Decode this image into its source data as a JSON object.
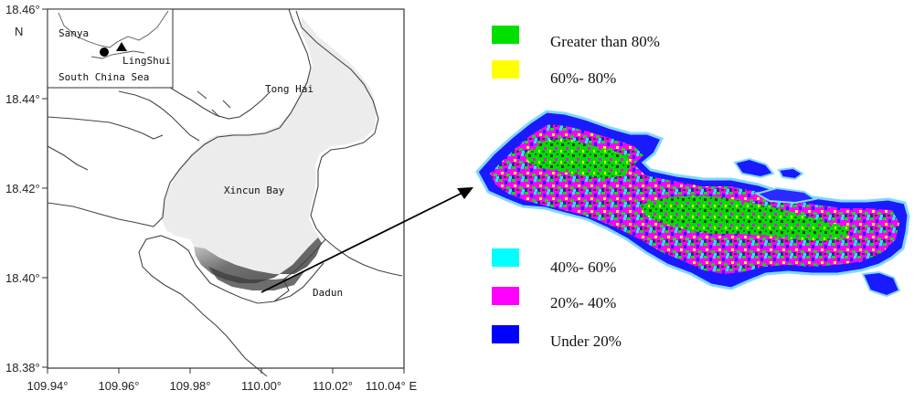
{
  "map": {
    "y_ticks": [
      "18.46°",
      "18.44°",
      "18.42°",
      "18.40°",
      "18.38°"
    ],
    "x_ticks": [
      "109.94°",
      "109.96°",
      "109.98°",
      "110.00°",
      "110.02°",
      "110.04° E"
    ],
    "north_label": "N",
    "places": {
      "tong_hai": "Tong Hai",
      "xincun_bay": "Xincun Bay",
      "dadun": "Dadun"
    },
    "inset": {
      "sanya": "Sanya",
      "lingshui": "LingShui",
      "south_china_sea": "South China Sea"
    }
  },
  "legend": [
    {
      "label": "Greater than 80%",
      "color": "#00e000"
    },
    {
      "label": "60%- 80%",
      "color": "#ffff00"
    },
    {
      "label": "40%- 60%",
      "color": "#00ffff"
    },
    {
      "label": "20%- 40%",
      "color": "#ff00ff"
    },
    {
      "label": "Under 20%",
      "color": "#0000ff"
    }
  ],
  "colors": {
    "bay_fill": "#ececec",
    "coast": "#444444",
    "seagrass_dark": "#5a5a5a",
    "arrow": "#000000"
  }
}
